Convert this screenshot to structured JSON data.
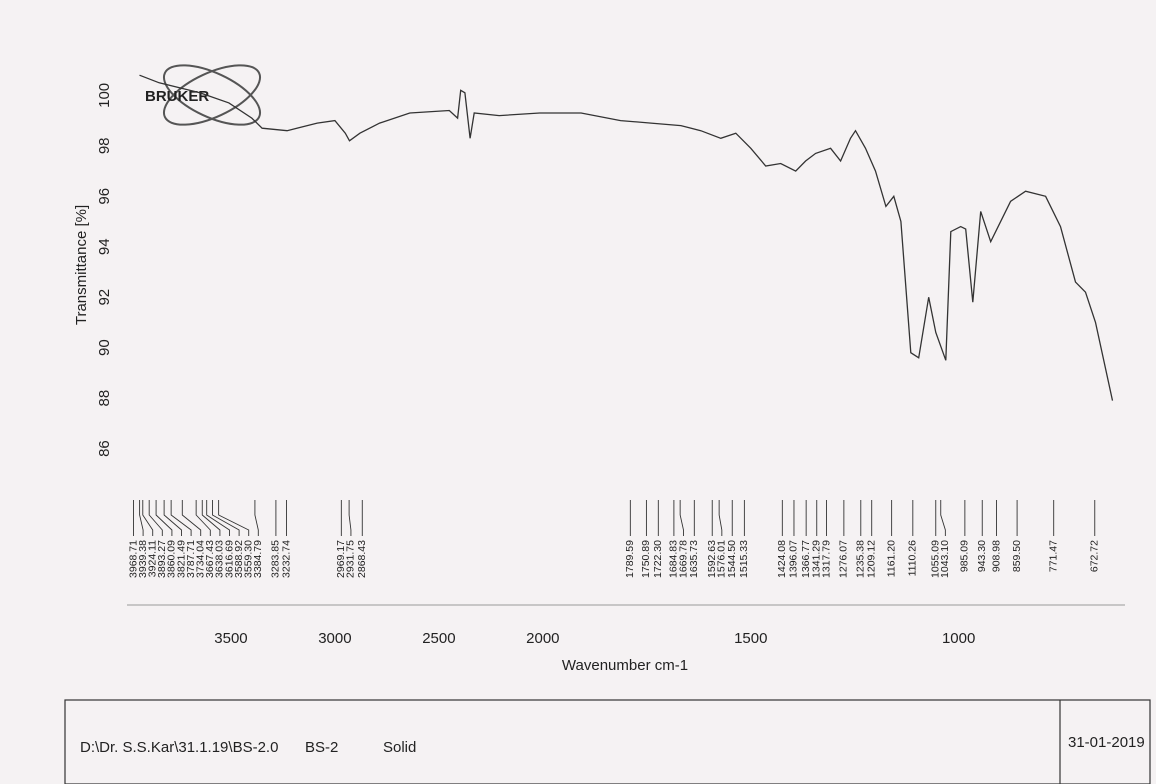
{
  "chart_data": {
    "type": "line",
    "logo": "BRUKER",
    "ylabel": "Transmittance [%]",
    "xlabel": "Wavenumber cm-1",
    "xlim": [
      4000,
      600
    ],
    "x_compression": {
      "above": 2000,
      "factor": 0.5
    },
    "ylim": [
      79.8,
      101.6
    ],
    "xticks": [
      3500,
      3000,
      2500,
      2000,
      1500,
      1000
    ],
    "yticks": [
      86,
      88,
      90,
      92,
      94,
      96,
      98,
      100
    ],
    "color": "#333333",
    "x": [
      3940,
      3845,
      3650,
      3510,
      3400,
      3350,
      3230,
      3085,
      3000,
      2950,
      2930,
      2880,
      2785,
      2640,
      2450,
      2410,
      2395,
      2375,
      2350,
      2330,
      2210,
      2015,
      1908,
      1813,
      1740,
      1668,
      1620,
      1572,
      1536,
      1500,
      1464,
      1428,
      1392,
      1368,
      1344,
      1308,
      1284,
      1260,
      1248,
      1224,
      1200,
      1175,
      1156,
      1139,
      1115,
      1096,
      1072,
      1055,
      1031,
      1019,
      995,
      983,
      966,
      947,
      923,
      875,
      839,
      791,
      755,
      719,
      695,
      671,
      630
    ],
    "values": [
      100.8,
      100.5,
      100.1,
      99.7,
      99.1,
      98.7,
      98.6,
      98.9,
      99.0,
      98.5,
      98.2,
      98.5,
      98.9,
      99.3,
      99.4,
      99.1,
      100.2,
      100.1,
      98.3,
      99.3,
      99.2,
      99.3,
      99.3,
      99.0,
      98.9,
      98.8,
      98.6,
      98.3,
      98.5,
      97.9,
      97.2,
      97.3,
      97.0,
      97.4,
      97.7,
      97.9,
      97.4,
      98.3,
      98.6,
      97.9,
      97.0,
      95.6,
      96.0,
      95.0,
      89.8,
      89.6,
      92.0,
      90.6,
      89.5,
      94.6,
      94.8,
      94.7,
      91.8,
      95.4,
      94.2,
      95.8,
      96.2,
      96.0,
      94.8,
      92.6,
      92.2,
      91.0,
      87.9
    ],
    "peaks": [
      3968.71,
      3939.38,
      3924.11,
      3893.27,
      3860.09,
      3821.49,
      3787.71,
      3734.04,
      3667.43,
      3638.03,
      3616.69,
      3588.92,
      {
        "value": 3559.3,
        "label": "3559.30"
      },
      3384.79,
      3283.85,
      3232.74,
      2969.17,
      2931.75,
      2868.43,
      1789.59,
      1750.89,
      {
        "value": 1722.3,
        "label": "1722.30"
      },
      1684.83,
      1669.78,
      1635.73,
      1592.63,
      1576.01,
      {
        "value": 1544.5,
        "label": "1544.50"
      },
      1515.33,
      1424.08,
      1396.07,
      1366.77,
      1341.29,
      1317.79,
      1276.07,
      1235.38,
      1209.12,
      {
        "value": 1161.2,
        "label": "1161.20"
      },
      1110.26,
      1055.09,
      {
        "value": 1043.1,
        "label": "1043.10"
      },
      985.09,
      {
        "value": 943.3,
        "label": "943.30"
      },
      908.98,
      {
        "value": 859.5,
        "label": "859.50"
      },
      771.47,
      672.72
    ]
  },
  "footer": {
    "path": "D:\\Dr. S.S.Kar\\31.1.19\\BS-2.0",
    "sample": "BS-2",
    "state": "Solid",
    "date": "31-01-2019"
  }
}
